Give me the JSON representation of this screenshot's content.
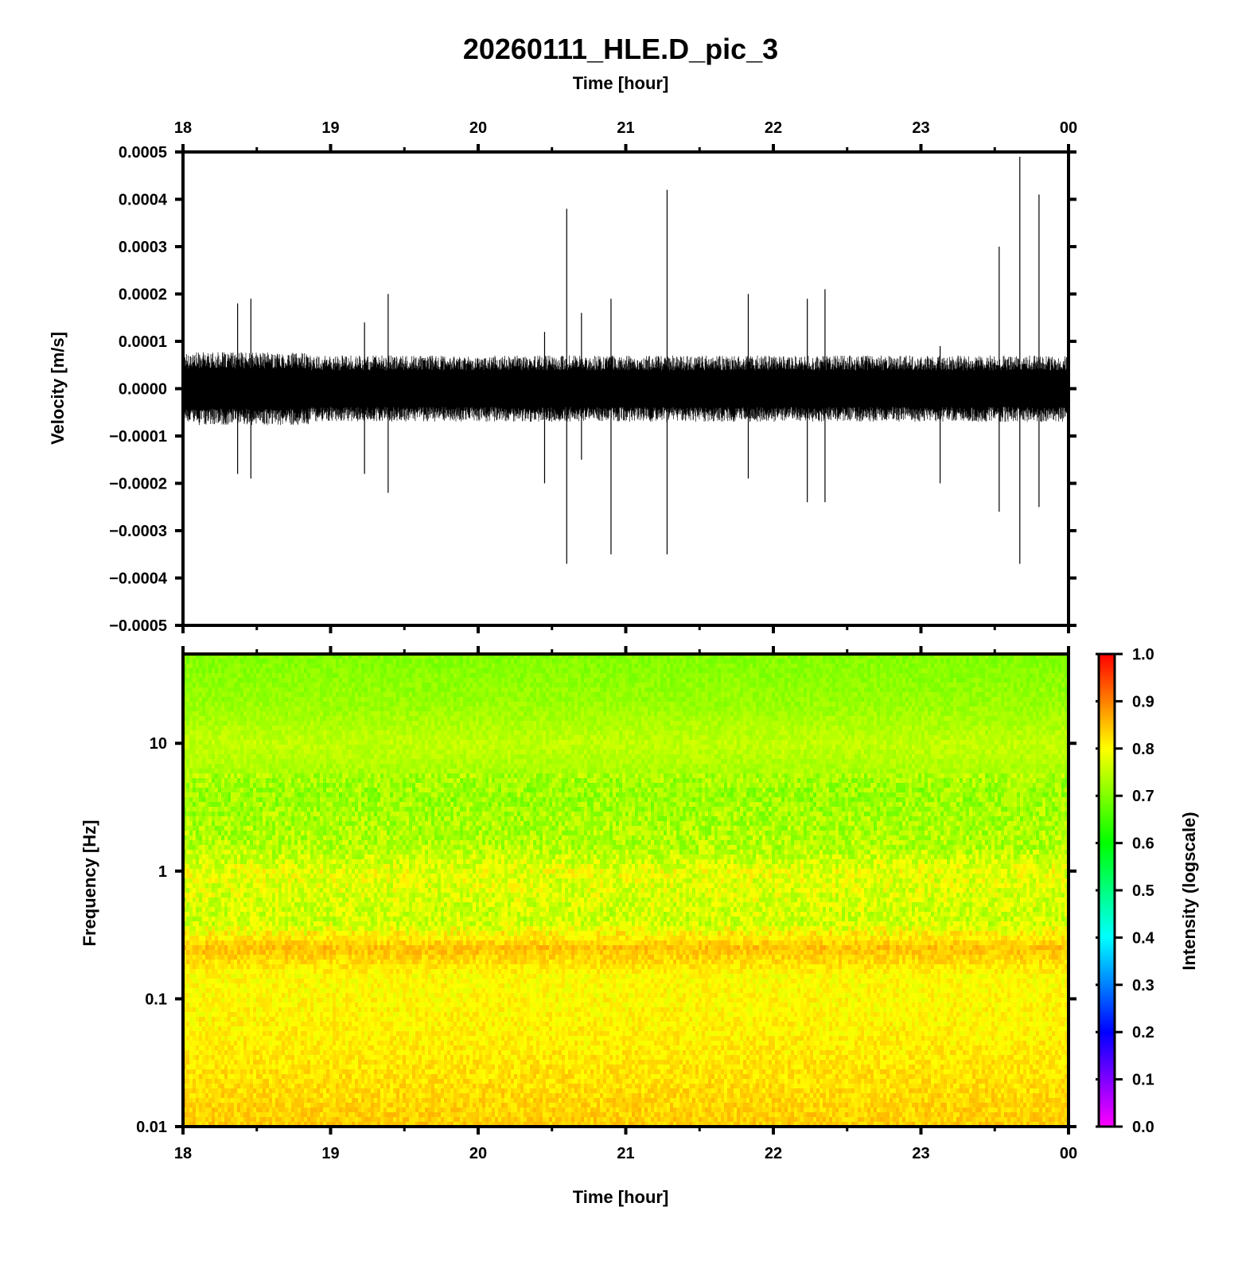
{
  "title": "20260111_HLE.D_pic_3",
  "chart_data": [
    {
      "type": "line",
      "name": "seismogram",
      "xlabel": "Time [hour]",
      "ylabel": "Velocity [m/s]",
      "x_ticks": [
        "18",
        "19",
        "20",
        "21",
        "22",
        "23",
        "00"
      ],
      "x_range": [
        18,
        24
      ],
      "ylim": [
        -0.0005,
        0.0005
      ],
      "y_ticks": [
        "0.0005",
        "0.0004",
        "0.0003",
        "0.0002",
        "0.0001",
        "0.0000",
        "−0.0001",
        "−0.0002",
        "−0.0003",
        "−0.0004",
        "−0.0005"
      ],
      "background_amplitude": 7e-05,
      "spikes": [
        {
          "t": 18.37,
          "max": 0.00018,
          "min": -0.00018
        },
        {
          "t": 18.46,
          "max": 0.00019,
          "min": -0.00019
        },
        {
          "t": 19.23,
          "max": 0.00014,
          "min": -0.00018
        },
        {
          "t": 19.39,
          "max": 0.0002,
          "min": -0.00022
        },
        {
          "t": 20.45,
          "max": 0.00012,
          "min": -0.0002
        },
        {
          "t": 20.6,
          "max": 0.00038,
          "min": -0.00037
        },
        {
          "t": 20.7,
          "max": 0.00016,
          "min": -0.00015
        },
        {
          "t": 20.9,
          "max": 0.00019,
          "min": -0.00035
        },
        {
          "t": 21.28,
          "max": 0.00042,
          "min": -0.00035
        },
        {
          "t": 21.83,
          "max": 0.0002,
          "min": -0.00019
        },
        {
          "t": 22.23,
          "max": 0.00019,
          "min": -0.00024
        },
        {
          "t": 22.35,
          "max": 0.00021,
          "min": -0.00024
        },
        {
          "t": 23.13,
          "max": 9e-05,
          "min": -0.0002
        },
        {
          "t": 23.53,
          "max": 0.0003,
          "min": -0.00026
        },
        {
          "t": 23.67,
          "max": 0.00049,
          "min": -0.00037
        },
        {
          "t": 23.8,
          "max": 0.00041,
          "min": -0.00025
        }
      ]
    },
    {
      "type": "heatmap",
      "name": "spectrogram",
      "xlabel": "Time [hour]",
      "ylabel": "Frequency [Hz]",
      "x_ticks": [
        "18",
        "19",
        "20",
        "21",
        "22",
        "23",
        "00"
      ],
      "x_range": [
        18,
        24
      ],
      "y_scale": "log",
      "ylim": [
        0.01,
        50
      ],
      "y_ticks": [
        "10",
        "1",
        "0.1",
        "0.01"
      ],
      "colorbar": {
        "label": "Intensity (logscale)",
        "range": [
          0.0,
          1.0
        ],
        "ticks": [
          "1.0",
          "0.9",
          "0.8",
          "0.7",
          "0.6",
          "0.5",
          "0.4",
          "0.3",
          "0.2",
          "0.1",
          "0.0"
        ],
        "colormap": [
          "#ff00ff",
          "#7f00ff",
          "#0000ff",
          "#0080ff",
          "#00ffff",
          "#00ff80",
          "#00ff00",
          "#80ff00",
          "#ffff00",
          "#ff8000",
          "#ff0000"
        ]
      },
      "intensity_profile": [
        {
          "f": 50,
          "i": 0.7
        },
        {
          "f": 20,
          "i": 0.72
        },
        {
          "f": 10,
          "i": 0.75
        },
        {
          "f": 4,
          "i": 0.72
        },
        {
          "f": 1.5,
          "i": 0.74
        },
        {
          "f": 1,
          "i": 0.78
        },
        {
          "f": 0.4,
          "i": 0.76
        },
        {
          "f": 0.25,
          "i": 0.85
        },
        {
          "f": 0.15,
          "i": 0.8
        },
        {
          "f": 0.05,
          "i": 0.81
        },
        {
          "f": 0.01,
          "i": 0.84
        }
      ]
    }
  ]
}
